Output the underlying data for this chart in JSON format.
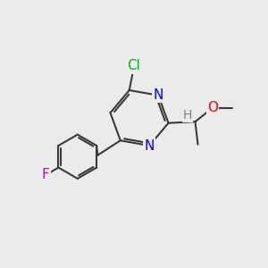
{
  "background_color": "#ebebeb",
  "bond_color": "#3a3a3a",
  "bond_width": 1.5,
  "atom_colors": {
    "Cl": "#00bb00",
    "N": "#0000ee",
    "F": "#cc00cc",
    "O": "#ee0000",
    "H": "#808080"
  },
  "font_size": 11,
  "fig_size": [
    3.0,
    3.0
  ],
  "dpi": 100
}
